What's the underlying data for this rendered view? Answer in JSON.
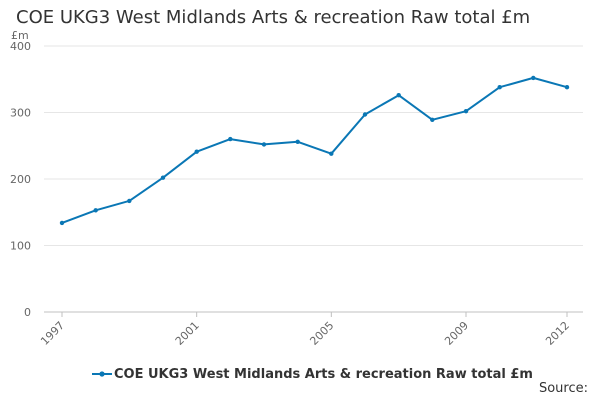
{
  "chart_data": {
    "type": "line",
    "title": "COE UKG3 West Midlands Arts & recreation Raw total £m",
    "ylabel": "£m",
    "xlabel": "",
    "x": [
      1997,
      1998,
      1999,
      2000,
      2001,
      2002,
      2003,
      2004,
      2005,
      2006,
      2007,
      2008,
      2009,
      2010,
      2011,
      2012
    ],
    "x_tick_labels": [
      "1997",
      "2001",
      "2005",
      "2009",
      "2012"
    ],
    "y_tick_labels": [
      "0",
      "100",
      "200",
      "300",
      "400"
    ],
    "ylim": [
      0,
      400
    ],
    "xlim": [
      1997,
      2012
    ],
    "series": [
      {
        "name": "COE UKG3 West Midlands Arts & recreation Raw total £m",
        "values": [
          134,
          153,
          167,
          202,
          241,
          260,
          252,
          256,
          238,
          297,
          326,
          289,
          302,
          338,
          352,
          338
        ],
        "color": "#0a77b5"
      }
    ],
    "grid": true,
    "legend_position": "bottom",
    "source_label": "Source:"
  }
}
